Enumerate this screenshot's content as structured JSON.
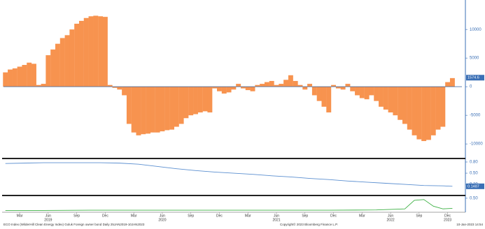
{
  "chart_data": [
    {
      "type": "bar",
      "color": "#f7934f",
      "xlim": [
        0.8,
        49
      ],
      "ylim": [
        -12300,
        14900
      ],
      "yticks": [
        10000,
        5000,
        0,
        -5000,
        -10000
      ],
      "last_value": 1574.6,
      "x": [
        1,
        1.5,
        2,
        2.5,
        3,
        3.5,
        4,
        4.5,
        5,
        5.5,
        6,
        6.5,
        7,
        7.5,
        8,
        8.5,
        9,
        9.5,
        10,
        10.5,
        11,
        11.5,
        12,
        12.5,
        13,
        13.5,
        14,
        14.5,
        15,
        15.5,
        16,
        16.5,
        17,
        17.5,
        18,
        18.5,
        19,
        19.5,
        20,
        20.5,
        21,
        21.5,
        22,
        22.5,
        23,
        23.5,
        24,
        24.5,
        25,
        25.5,
        26,
        26.5,
        27,
        27.5,
        28,
        28.5,
        29,
        29.5,
        30,
        30.5,
        31,
        31.5,
        32,
        32.5,
        33,
        33.5,
        34,
        34.5,
        35,
        35.5,
        36,
        36.5,
        37,
        37.5,
        38,
        38.5,
        39,
        39.5,
        40,
        40.5,
        41,
        41.5,
        42,
        42.5,
        43,
        43.5,
        44,
        44.5,
        45,
        45.5,
        46,
        46.5,
        47,
        47.5,
        48
      ],
      "values": [
        2500,
        3000,
        3200,
        3500,
        3800,
        4200,
        4000,
        300,
        500,
        5500,
        6500,
        7500,
        8500,
        9000,
        10000,
        11000,
        11500,
        12000,
        12300,
        12400,
        12300,
        12200,
        300,
        -200,
        -500,
        -1500,
        -6500,
        -8000,
        -8500,
        -8300,
        -8200,
        -8000,
        -8000,
        -7800,
        -7600,
        -7500,
        -7000,
        -6500,
        -5500,
        -5000,
        -4800,
        -4500,
        -4300,
        -4500,
        -300,
        -800,
        -1200,
        -1000,
        -500,
        500,
        -300,
        -600,
        -800,
        300,
        500,
        800,
        1000,
        300,
        500,
        1200,
        2000,
        1000,
        300,
        -500,
        500,
        -1500,
        -2500,
        -3500,
        -4500,
        300,
        -300,
        -500,
        500,
        -800,
        -1500,
        -2000,
        -2200,
        -1500,
        -2500,
        -3500,
        -4000,
        -4500,
        -5000,
        -5800,
        -6500,
        -7500,
        -8500,
        -9200,
        -9500,
        -9300,
        -8500,
        -7500,
        -7000,
        800,
        1500
      ]
    },
    {
      "type": "line",
      "color": "#5b8fd0",
      "xlim": [
        0.8,
        49
      ],
      "ylim": [
        -0.06,
        0.875
      ],
      "yticks": [
        {
          "value": 0.8,
          "label": "0.80"
        },
        {
          "value": 0.5,
          "label": "0.50"
        },
        {
          "value": 0.2,
          "label": "0.20"
        }
      ],
      "last_value": 0.1487,
      "x": [
        1,
        3,
        5,
        7,
        9,
        11,
        13,
        15,
        17,
        19,
        21,
        23,
        25,
        27,
        29,
        31,
        33,
        35,
        37,
        39,
        41,
        43,
        45,
        47,
        48
      ],
      "values": [
        0.76,
        0.77,
        0.78,
        0.78,
        0.78,
        0.78,
        0.77,
        0.74,
        0.68,
        0.62,
        0.57,
        0.53,
        0.5,
        0.47,
        0.43,
        0.4,
        0.36,
        0.33,
        0.29,
        0.26,
        0.23,
        0.2,
        0.17,
        0.16,
        0.15
      ]
    },
    {
      "type": "line",
      "color": "#3cb043",
      "xlim": [
        0.8,
        49
      ],
      "ylim": [
        0,
        0.55
      ],
      "yticks": [
        {
          "value": 0.5,
          "label": "0.50"
        }
      ],
      "x": [
        1,
        5,
        10,
        15,
        20,
        25,
        30,
        35,
        40,
        43,
        44,
        45,
        46,
        47,
        48
      ],
      "values": [
        0.04,
        0.04,
        0.05,
        0.05,
        0.05,
        0.05,
        0.05,
        0.05,
        0.06,
        0.1,
        0.42,
        0.45,
        0.2,
        0.1,
        0.12
      ],
      "xticks": [
        {
          "value": 2.5,
          "label": "Mar"
        },
        {
          "value": 5.5,
          "label": "Jun"
        },
        {
          "value": 8.5,
          "label": "Sep"
        },
        {
          "value": 11.5,
          "label": "Dec"
        },
        {
          "value": 14.5,
          "label": "Mar"
        },
        {
          "value": 17.5,
          "label": "Jun"
        },
        {
          "value": 20.5,
          "label": "Sep"
        },
        {
          "value": 23.5,
          "label": "Dec"
        },
        {
          "value": 26.5,
          "label": "Mar"
        },
        {
          "value": 29.5,
          "label": "Jun"
        },
        {
          "value": 32.5,
          "label": "Sep"
        },
        {
          "value": 35.5,
          "label": "Dec"
        },
        {
          "value": 38.5,
          "label": "Mar"
        },
        {
          "value": 41.5,
          "label": "Jun"
        },
        {
          "value": 44.5,
          "label": "Sep"
        },
        {
          "value": 47.5,
          "label": "Dec"
        }
      ],
      "year_ticks": [
        {
          "value": 5.5,
          "label": "2019"
        },
        {
          "value": 17.5,
          "label": "2020"
        },
        {
          "value": 29.5,
          "label": "2021"
        },
        {
          "value": 41.5,
          "label": "2022"
        },
        {
          "value": 47.5,
          "label": "2023"
        }
      ]
    }
  ],
  "footer": {
    "left": "ECO Index (WilderHill Clean Energy Index) Goluk Foreign owner bond  Daily 25JAN2019-10JAN2023",
    "center": "Copyright© 2023 Bloomberg Finance L.P.",
    "right": "10-Jan-2023 14:54"
  }
}
